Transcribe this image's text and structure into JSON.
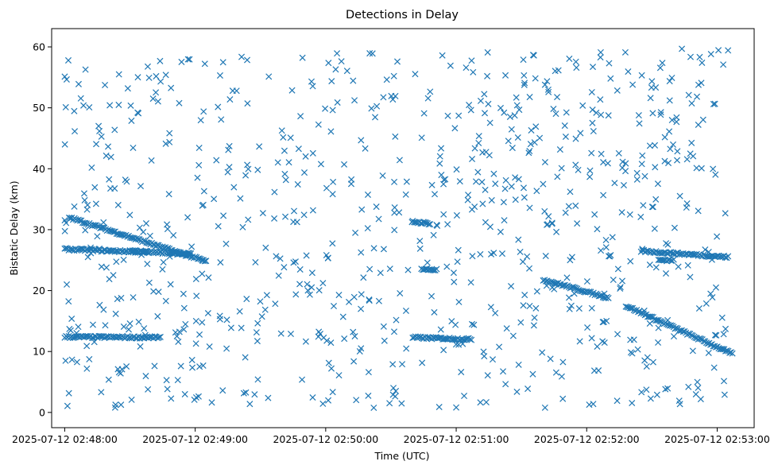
{
  "chart_data": {
    "type": "scatter",
    "title": "Detections in Delay",
    "xlabel": "Time (UTC)",
    "ylabel": "Bistatic Delay (km)",
    "marker": "x",
    "color": "#1f77b4",
    "grid": false,
    "legend": "none",
    "xlim": [
      "2025-07-12 02:47:54",
      "2025-07-12 02:53:17"
    ],
    "ylim": [
      -2.5,
      63
    ],
    "x_ticks": [
      "2025-07-12 02:48:00",
      "2025-07-12 02:49:00",
      "2025-07-12 02:50:00",
      "2025-07-12 02:51:00",
      "2025-07-12 02:52:00",
      "2025-07-12 02:53:00"
    ],
    "y_ticks": [
      0,
      10,
      20,
      30,
      40,
      50,
      60
    ],
    "tracks": [
      {
        "start": [
          "2025-07-12 02:48:00",
          12.4
        ],
        "end": [
          "2025-07-12 02:48:44",
          12.3
        ]
      },
      {
        "start": [
          "2025-07-12 02:48:00",
          26.8
        ],
        "end": [
          "2025-07-12 02:48:38",
          26.3
        ]
      },
      {
        "start": [
          "2025-07-12 02:48:02",
          32.0
        ],
        "end": [
          "2025-07-12 02:49:05",
          24.8
        ]
      },
      {
        "start": [
          "2025-07-12 02:48:30",
          26.5
        ],
        "end": [
          "2025-07-12 02:48:58",
          26.0
        ]
      },
      {
        "start": [
          "2025-07-12 02:50:40",
          31.3
        ],
        "end": [
          "2025-07-12 02:50:48",
          31.0
        ]
      },
      {
        "start": [
          "2025-07-12 02:50:44",
          23.5
        ],
        "end": [
          "2025-07-12 02:50:51",
          23.4
        ]
      },
      {
        "start": [
          "2025-07-12 02:50:40",
          12.3
        ],
        "end": [
          "2025-07-12 02:51:07",
          12.0
        ]
      },
      {
        "start": [
          "2025-07-12 02:51:40",
          21.8
        ],
        "end": [
          "2025-07-12 02:52:10",
          18.8
        ]
      },
      {
        "start": [
          "2025-07-12 02:52:18",
          17.5
        ],
        "end": [
          "2025-07-12 02:53:07",
          9.6
        ]
      },
      {
        "start": [
          "2025-07-12 02:52:25",
          26.5
        ],
        "end": [
          "2025-07-12 02:53:05",
          25.5
        ]
      },
      {
        "start": [
          "2025-07-12 02:52:33",
          25.0
        ],
        "end": [
          "2025-07-12 02:52:40",
          25.0
        ]
      }
    ],
    "clutter": {
      "count": 820,
      "x_range": [
        "2025-07-12 02:48:00",
        "2025-07-12 02:53:05"
      ],
      "y_range": [
        0.7,
        59.8
      ]
    }
  }
}
